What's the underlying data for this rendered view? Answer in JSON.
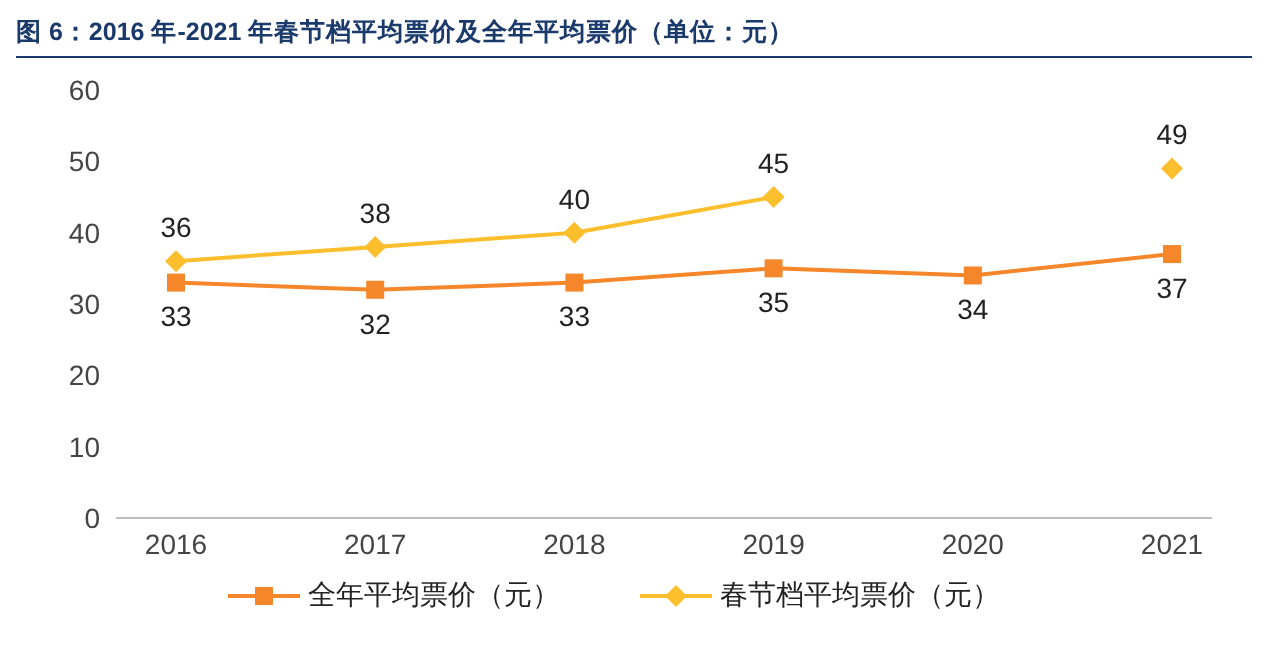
{
  "chart_data": {
    "type": "line",
    "title": "图 6：2016 年-2021 年春节档平均票价及全年平均票价（单位：元）",
    "categories": [
      "2016",
      "2017",
      "2018",
      "2019",
      "2020",
      "2021"
    ],
    "series": [
      {
        "name": "全年平均票价（元）",
        "color": "#f5862a",
        "marker": "square",
        "values": [
          33,
          32,
          33,
          35,
          34,
          37
        ]
      },
      {
        "name": "春节档平均票价（元）",
        "color": "#fbbf2d",
        "marker": "diamond",
        "values": [
          36,
          38,
          40,
          45,
          null,
          49
        ]
      }
    ],
    "ylim": [
      0,
      60
    ],
    "yticks": [
      0,
      10,
      20,
      30,
      40,
      50,
      60
    ],
    "grid": false,
    "legend": "bottom",
    "data_labels": true,
    "line_style": "solid"
  }
}
